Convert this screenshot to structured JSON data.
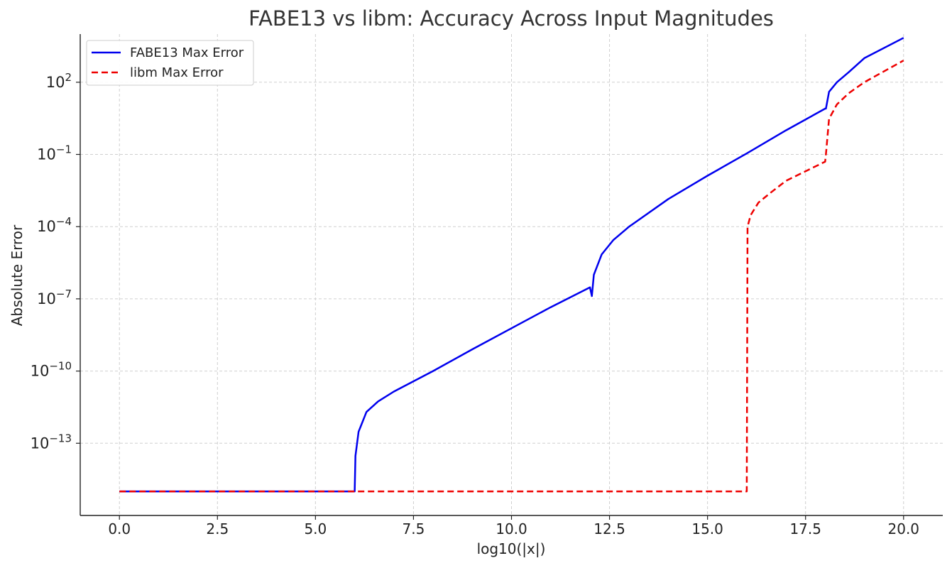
{
  "chart_data": {
    "type": "line",
    "title": "FABE13 vs libm: Accuracy Across Input Magnitudes",
    "xlabel": "log10(|x|)",
    "ylabel": "Absolute Error",
    "xlim": [
      -1,
      21
    ],
    "ylim": [
      1e-16,
      10000.0
    ],
    "yscale": "log",
    "grid": true,
    "legend_position": "top-left",
    "x_ticks": [
      0,
      2.5,
      5,
      7.5,
      10,
      12.5,
      15,
      17.5,
      20
    ],
    "x_tick_labels": [
      "0.0",
      "2.5",
      "5.0",
      "7.5",
      "10.0",
      "12.5",
      "15.0",
      "17.5",
      "20.0"
    ],
    "y_ticks": [
      {
        "value": 100.0,
        "base": "10",
        "exp": "2"
      },
      {
        "value": 0.1,
        "base": "10",
        "exp": "−1"
      },
      {
        "value": 0.0001,
        "base": "10",
        "exp": "−4"
      },
      {
        "value": 1e-07,
        "base": "10",
        "exp": "−7"
      },
      {
        "value": 1e-10,
        "base": "10",
        "exp": "−10"
      },
      {
        "value": 1e-13,
        "base": "10",
        "exp": "−13"
      }
    ],
    "series": [
      {
        "name": "FABE13 Max Error",
        "color": "#0000ee",
        "dash": "solid",
        "x": [
          0,
          6.0,
          6.02,
          6.1,
          6.3,
          6.6,
          7.0,
          8.0,
          9.0,
          10.0,
          11.0,
          12.0,
          12.05,
          12.1,
          12.3,
          12.6,
          13.0,
          14.0,
          15.0,
          16.0,
          17.0,
          18.0,
          18.02,
          18.1,
          18.3,
          18.6,
          19.0,
          20.0
        ],
        "y": [
          1e-15,
          1e-15,
          3e-14,
          3e-13,
          2e-12,
          5.5e-12,
          1.4e-11,
          1e-10,
          8e-10,
          6e-09,
          4.5e-08,
          3e-07,
          1.3e-07,
          1e-06,
          7e-06,
          2.8e-05,
          0.0001,
          0.0014,
          0.013,
          0.11,
          1.0,
          8.0,
          8.0,
          40,
          100,
          260,
          1000,
          7000
        ]
      },
      {
        "name": "libm Max Error",
        "color": "#ee0000",
        "dash": "dashed",
        "x": [
          0,
          16.0,
          16.02,
          16.1,
          16.3,
          16.6,
          17.0,
          18.0,
          18.02,
          18.1,
          18.3,
          18.6,
          19.0,
          20.0
        ],
        "y": [
          1e-15,
          1e-15,
          0.0001,
          0.0003,
          0.001,
          0.0025,
          0.008,
          0.05,
          0.1,
          3,
          12,
          35,
          100,
          800
        ]
      }
    ]
  }
}
